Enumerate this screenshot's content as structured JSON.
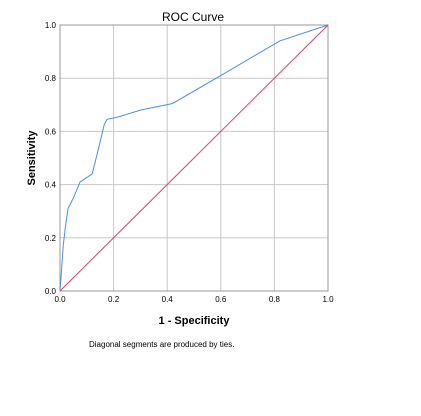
{
  "chart_data": {
    "type": "line",
    "title": "ROC Curve",
    "xlabel": "1 - Specificity",
    "ylabel": "Sensitivity",
    "xlim": [
      0.0,
      1.0
    ],
    "ylim": [
      0.0,
      1.0
    ],
    "x_ticks": [
      "0.0",
      "0.2",
      "0.4",
      "0.6",
      "0.8",
      "1.0"
    ],
    "y_ticks": [
      "0.0",
      "0.2",
      "0.4",
      "0.6",
      "0.8",
      "1.0"
    ],
    "grid": true,
    "annotation": "Diagonal segments are produced by ties.",
    "series": [
      {
        "color": "#4a90d9",
        "points": [
          [
            0.0,
            0.0
          ],
          [
            0.005,
            0.07
          ],
          [
            0.012,
            0.17
          ],
          [
            0.02,
            0.24
          ],
          [
            0.03,
            0.31
          ],
          [
            0.05,
            0.35
          ],
          [
            0.075,
            0.41
          ],
          [
            0.09,
            0.42
          ],
          [
            0.12,
            0.44
          ],
          [
            0.14,
            0.52
          ],
          [
            0.165,
            0.625
          ],
          [
            0.175,
            0.645
          ],
          [
            0.22,
            0.655
          ],
          [
            0.3,
            0.68
          ],
          [
            0.42,
            0.705
          ],
          [
            0.6,
            0.81
          ],
          [
            0.82,
            0.94
          ],
          [
            1.0,
            1.0
          ]
        ]
      },
      {
        "color": "#d9436b",
        "points": [
          [
            0.0,
            0.0
          ],
          [
            1.0,
            1.0
          ]
        ]
      }
    ]
  }
}
